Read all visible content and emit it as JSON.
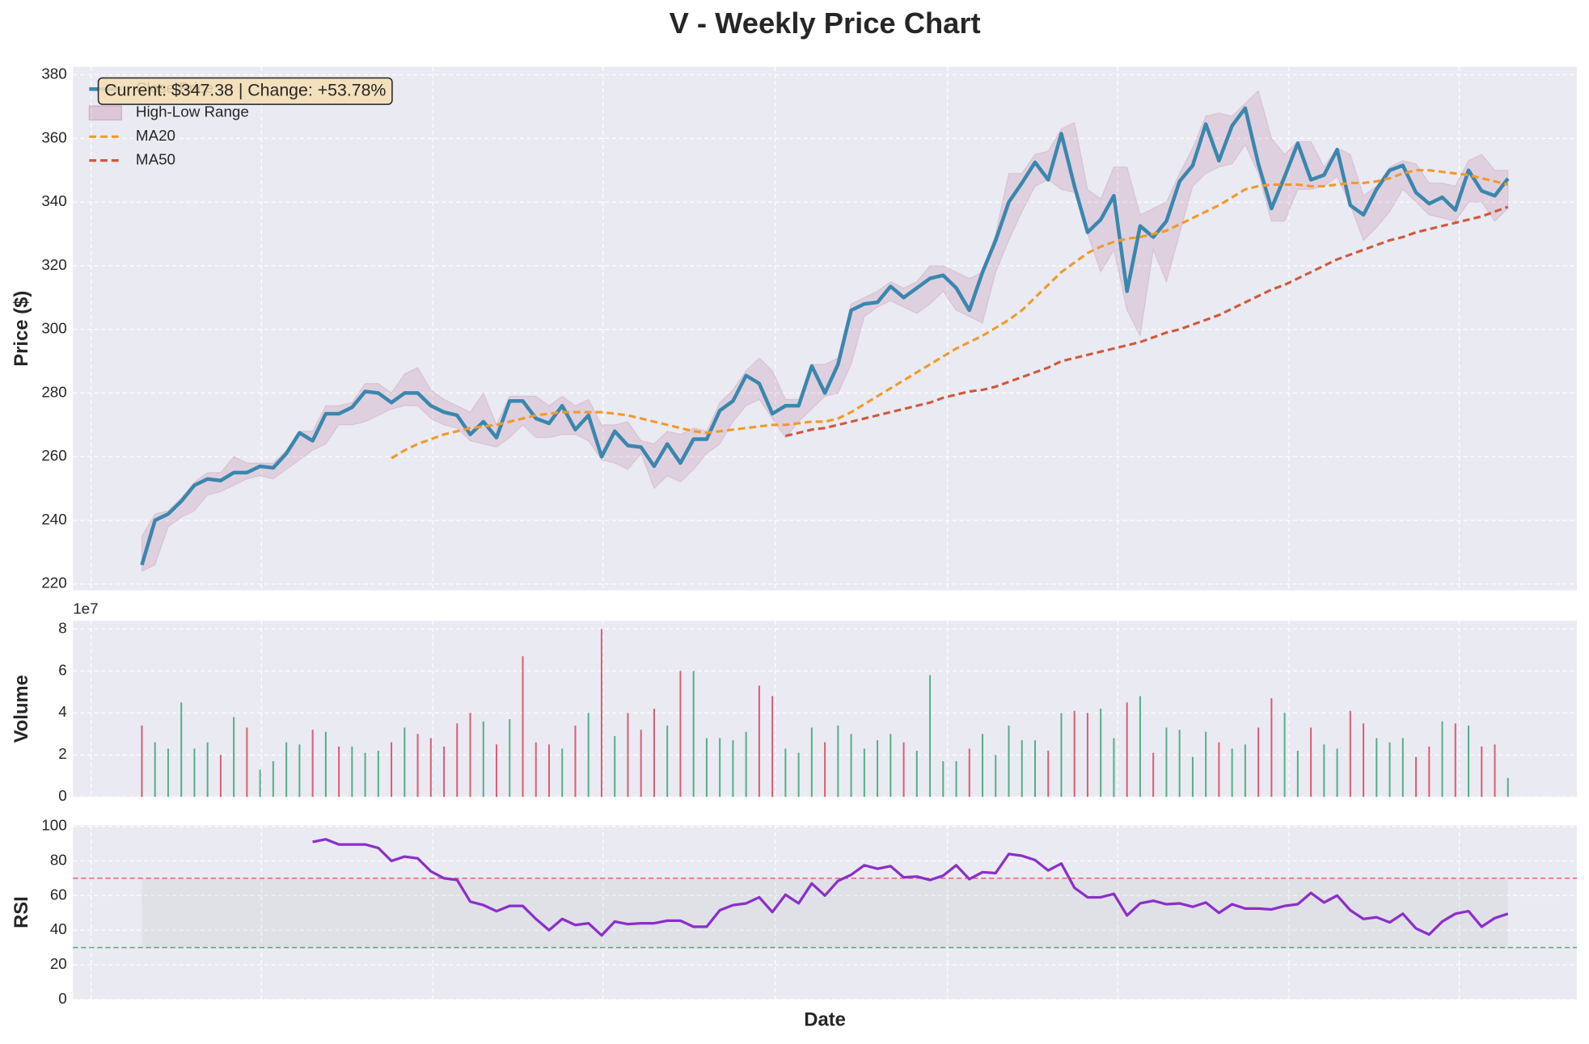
{
  "chart_data": [
    {
      "type": "line",
      "title": "V - Weekly Price Chart",
      "ylabel": "Price ($)",
      "ylim": [
        218,
        382.5
      ],
      "yticks": [
        220,
        240,
        260,
        280,
        300,
        320,
        340,
        360,
        380
      ],
      "grid": true,
      "legend": "upper left",
      "annotation": "Current: $347.38 | Change: +53.78%",
      "series": [
        {
          "name": "Close Price",
          "color": "#3a87ad",
          "linestyle": "solid",
          "values": [
            226,
            240,
            242,
            246,
            251,
            253,
            252.5,
            255,
            255,
            257,
            256.5,
            261,
            267.5,
            265,
            273.5,
            273.5,
            275.5,
            280.5,
            280,
            277,
            280,
            280,
            276,
            274,
            273,
            267,
            271,
            266,
            277.5,
            277.5,
            272,
            270.5,
            276,
            268.5,
            273,
            260,
            268,
            263.5,
            263,
            257,
            264,
            258,
            265.5,
            265.5,
            274.5,
            277.5,
            285.5,
            283,
            273.5,
            276,
            276,
            288.5,
            280,
            289,
            306,
            308,
            308.5,
            313.5,
            310,
            313,
            316,
            317,
            313,
            306,
            318,
            328,
            340,
            346,
            352.5,
            347,
            361.5,
            345,
            330.5,
            334.5,
            342,
            312,
            332.5,
            329,
            334,
            346.5,
            351.5,
            364.5,
            353,
            364,
            369.5,
            352,
            338,
            348,
            358.5,
            347,
            348.5,
            356.5,
            339,
            336,
            344,
            350,
            351.5,
            343,
            339.5,
            341.5,
            337.5,
            350,
            343.5,
            342,
            347.38
          ]
        },
        {
          "name": "High-Low Range",
          "color": "#a23b72",
          "high": [
            235,
            242,
            243,
            247,
            252,
            255,
            255,
            260,
            258,
            258,
            258,
            262,
            268,
            268,
            276,
            276,
            277,
            283,
            283,
            280,
            286,
            288,
            281,
            278,
            276,
            274,
            280,
            270,
            279,
            279,
            279,
            276,
            279,
            276,
            278,
            270,
            270,
            271,
            265,
            264,
            268,
            267,
            269,
            268,
            277,
            281,
            287,
            291,
            287,
            278,
            278,
            289,
            289,
            291,
            308,
            310,
            312,
            315,
            313,
            315,
            320,
            320,
            318,
            316,
            318,
            330,
            349,
            349,
            355,
            356,
            363,
            365,
            344,
            341,
            351,
            351,
            336,
            338,
            340,
            349,
            357,
            367,
            368,
            367,
            371,
            375,
            360,
            355,
            359,
            359,
            351,
            357,
            355,
            342,
            345,
            351,
            353,
            352,
            346,
            346,
            345,
            353,
            355,
            350,
            350
          ],
          "low": [
            224,
            226,
            238,
            241,
            243,
            248,
            249,
            251,
            253,
            254,
            253,
            256,
            259,
            262,
            264,
            270,
            270,
            271,
            273,
            275,
            276,
            276,
            272,
            270,
            269,
            265,
            264,
            263,
            266,
            270,
            266,
            266,
            267,
            267,
            265,
            259,
            258,
            256,
            261,
            250,
            254,
            252,
            256,
            261,
            264,
            271,
            276,
            278,
            272,
            266,
            271,
            275,
            279,
            280,
            289,
            304,
            307,
            309,
            307,
            305,
            308,
            312,
            306,
            304,
            302,
            318,
            328,
            337,
            345,
            347,
            344,
            343,
            330,
            318,
            325,
            306,
            298,
            325,
            315,
            330,
            345,
            349,
            351,
            352,
            358,
            349,
            334,
            334,
            344,
            344,
            345,
            348,
            339,
            328,
            332,
            337,
            344,
            340,
            336,
            335,
            334,
            340,
            340,
            334,
            338
          ]
        },
        {
          "name": "MA20",
          "color": "#f09a2a",
          "linestyle": "dashed",
          "values": [
            null,
            null,
            null,
            null,
            null,
            null,
            null,
            null,
            null,
            null,
            null,
            null,
            null,
            null,
            null,
            null,
            null,
            null,
            null,
            259.5,
            262,
            264,
            265.5,
            267,
            268,
            269,
            269.5,
            270,
            271,
            272,
            273,
            273.5,
            274,
            274,
            274,
            274,
            273.5,
            273,
            272,
            271,
            270,
            269,
            268,
            267.5,
            268,
            268.5,
            269,
            269.5,
            270,
            270,
            270.5,
            271,
            271,
            272,
            274,
            276.5,
            279,
            281.5,
            284,
            286.5,
            289,
            291.5,
            294,
            296,
            298,
            300.5,
            303,
            306,
            310,
            314,
            318,
            321,
            324,
            326,
            327.5,
            328.5,
            329,
            330,
            331,
            333,
            335,
            337,
            339,
            341.5,
            344,
            345,
            345.5,
            345.5,
            345.5,
            345,
            345,
            345.5,
            346,
            346,
            346.5,
            347.5,
            349,
            350,
            350,
            349.5,
            349,
            348.5,
            347.5,
            346.5,
            345.5
          ]
        },
        {
          "name": "MA50",
          "color": "#cd5a3c",
          "linestyle": "dashed",
          "values": [
            null,
            null,
            null,
            null,
            null,
            null,
            null,
            null,
            null,
            null,
            null,
            null,
            null,
            null,
            null,
            null,
            null,
            null,
            null,
            null,
            null,
            null,
            null,
            null,
            null,
            null,
            null,
            null,
            null,
            null,
            null,
            null,
            null,
            null,
            null,
            null,
            null,
            null,
            null,
            null,
            null,
            null,
            null,
            null,
            null,
            null,
            null,
            null,
            null,
            266.5,
            267.5,
            268.5,
            269,
            270,
            271,
            272,
            273,
            274,
            275,
            276,
            277,
            278.5,
            279.5,
            280.5,
            281,
            282,
            283.5,
            285,
            286.5,
            288,
            290,
            291,
            292,
            293,
            294,
            295,
            296,
            297.5,
            299,
            300,
            301.5,
            303,
            304.5,
            306.5,
            308.5,
            310.5,
            312.5,
            314,
            316,
            318,
            320,
            322,
            323.5,
            325,
            326.5,
            328,
            329,
            330.5,
            331.5,
            332.5,
            333.5,
            334.5,
            335.5,
            337,
            338.5
          ]
        }
      ]
    },
    {
      "type": "bar",
      "ylabel": "Volume",
      "offset_label": "1e7",
      "ylim": [
        0,
        8.39
      ],
      "yticks": [
        0,
        2,
        4,
        6,
        8
      ],
      "grid": true,
      "values": [
        3.4,
        2.6,
        2.3,
        4.5,
        2.3,
        2.6,
        2.0,
        3.8,
        3.3,
        1.3,
        1.7,
        2.6,
        2.5,
        3.2,
        3.1,
        2.4,
        2.4,
        2.1,
        2.2,
        2.6,
        3.3,
        3.0,
        2.8,
        2.4,
        3.5,
        4.0,
        3.6,
        2.5,
        3.7,
        6.7,
        2.6,
        2.5,
        2.3,
        3.4,
        4.0,
        8.0,
        2.9,
        4.0,
        3.2,
        4.2,
        3.4,
        6.0,
        6.0,
        2.8,
        2.8,
        2.7,
        3.1,
        5.3,
        4.8,
        2.3,
        2.1,
        3.3,
        2.6,
        3.4,
        3.0,
        2.3,
        2.7,
        3.0,
        2.6,
        2.2,
        5.8,
        1.7,
        1.7,
        2.3,
        3.0,
        2.0,
        3.4,
        2.7,
        2.7,
        2.2,
        4.0,
        4.1,
        4.0,
        4.2,
        2.8,
        4.5,
        4.8,
        2.1,
        3.3,
        3.2,
        1.9,
        3.1,
        2.6,
        2.3,
        2.5,
        3.3,
        4.7,
        4.0,
        2.2,
        3.3,
        2.5,
        2.3,
        4.1,
        3.5,
        2.8,
        2.6,
        2.8,
        1.9,
        2.4,
        3.6,
        3.5,
        3.4,
        2.4,
        2.5,
        0.9
      ],
      "colors": [
        "#d9435a",
        "#3ba374",
        "#3ba374",
        "#3ba374",
        "#3ba374",
        "#3ba374",
        "#d9435a",
        "#3ba374",
        "#d9435a",
        "#3ba374",
        "#3ba374",
        "#3ba374",
        "#3ba374",
        "#d9435a",
        "#3ba374",
        "#d9435a",
        "#3ba374",
        "#3ba374",
        "#3ba374",
        "#d9435a",
        "#3ba374",
        "#d9435a",
        "#d9435a",
        "#d9435a",
        "#d9435a",
        "#d9435a",
        "#3ba374",
        "#d9435a",
        "#3ba374",
        "#d9435a",
        "#d9435a",
        "#d9435a",
        "#3ba374",
        "#d9435a",
        "#3ba374",
        "#d9435a",
        "#3ba374",
        "#d9435a",
        "#d9435a",
        "#d9435a",
        "#3ba374",
        "#d9435a",
        "#3ba374",
        "#3ba374",
        "#3ba374",
        "#3ba374",
        "#3ba374",
        "#d9435a",
        "#d9435a",
        "#3ba374",
        "#3ba374",
        "#3ba374",
        "#d9435a",
        "#3ba374",
        "#3ba374",
        "#3ba374",
        "#3ba374",
        "#3ba374",
        "#d9435a",
        "#3ba374",
        "#3ba374",
        "#3ba374",
        "#3ba374",
        "#d9435a",
        "#3ba374",
        "#3ba374",
        "#3ba374",
        "#3ba374",
        "#3ba374",
        "#d9435a",
        "#3ba374",
        "#d9435a",
        "#d9435a",
        "#3ba374",
        "#3ba374",
        "#d9435a",
        "#3ba374",
        "#d9435a",
        "#3ba374",
        "#3ba374",
        "#3ba374",
        "#3ba374",
        "#d9435a",
        "#3ba374",
        "#3ba374",
        "#d9435a",
        "#d9435a",
        "#3ba374",
        "#3ba374",
        "#d9435a",
        "#3ba374",
        "#3ba374",
        "#d9435a",
        "#d9435a",
        "#3ba374",
        "#3ba374",
        "#3ba374",
        "#d9435a",
        "#d9435a",
        "#3ba374",
        "#d9435a",
        "#3ba374",
        "#d9435a",
        "#d9435a",
        "#3ba374"
      ]
    },
    {
      "type": "line",
      "ylabel": "RSI",
      "xlabel": "Date",
      "ylim": [
        0,
        100.6
      ],
      "yticks": [
        0,
        20,
        40,
        60,
        80,
        100
      ],
      "grid": true,
      "hlines": [
        {
          "value": 70,
          "color": "#e8485c"
        },
        {
          "value": 30,
          "color": "#3f9d5a"
        }
      ],
      "series": [
        {
          "color": "#8b2fc9",
          "linestyle": "solid",
          "values": [
            null,
            null,
            null,
            null,
            null,
            null,
            null,
            null,
            null,
            null,
            null,
            null,
            null,
            91,
            92.5,
            89.5,
            89.5,
            89.5,
            87.5,
            80,
            82.5,
            81.5,
            74,
            70,
            69,
            56.5,
            54.5,
            51,
            54,
            54,
            46.5,
            40,
            46.5,
            43,
            44,
            37,
            45,
            43.5,
            44,
            44,
            45.5,
            45.5,
            42,
            42,
            51.5,
            54.5,
            55.5,
            59,
            50.5,
            60.5,
            55.5,
            67,
            60,
            68.5,
            72,
            77.5,
            75.5,
            77,
            70.5,
            71,
            69,
            71.5,
            77.5,
            69.5,
            73.5,
            73,
            84,
            83,
            80.5,
            74.5,
            78.5,
            64.5,
            59,
            59,
            61,
            48.5,
            55.5,
            57,
            55,
            55.5,
            53.5,
            56,
            50,
            55,
            52.5,
            52.5,
            52,
            54,
            55,
            61.5,
            56,
            60,
            51.5,
            46.5,
            47.5,
            44.5,
            49.5,
            41,
            37.5,
            45,
            49.5,
            51,
            42,
            47,
            49.5
          ]
        }
      ]
    }
  ]
}
